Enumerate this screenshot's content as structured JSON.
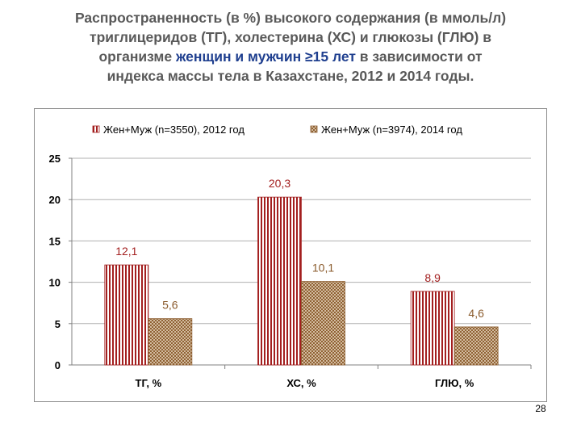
{
  "title": {
    "line1": "Распространенность (в %) высокого содержания (в ммоль/л)",
    "line2": "триглицеридов (ТГ), холестерина (ХС) и глюкозы (ГЛЮ) в",
    "line3_a": "организме ",
    "line3_b": "женщин и мужчин ≥15 лет",
    "line3_c": " в зависимости от",
    "line4": "индекса массы тела в Казахстане, 2012 и 2014 годы."
  },
  "colors": {
    "series_2012": "#a31f1f",
    "series_2014": "#8a5a2b",
    "label_2012": "#a31f1f",
    "label_2014": "#8a5a2b",
    "highlight_text": "#1f3f8f"
  },
  "chart_data": {
    "type": "bar",
    "categories": [
      "ТГ, %",
      "ХС, %",
      "ГЛЮ, %"
    ],
    "series": [
      {
        "name": "Жен+Муж (n=3550), 2012 год",
        "values": [
          12.1,
          20.3,
          8.9
        ],
        "labels": [
          "12,1",
          "20,3",
          "8,9"
        ]
      },
      {
        "name": "Жен+Муж (n=3974), 2014 год",
        "values": [
          5.6,
          10.1,
          4.6
        ],
        "labels": [
          "5,6",
          "10,1",
          "4,6"
        ]
      }
    ],
    "yticks": [
      "0",
      "5",
      "10",
      "15",
      "20",
      "25"
    ],
    "ylim": [
      0,
      25
    ],
    "grid": true,
    "legend": "top"
  },
  "page_number": "28"
}
